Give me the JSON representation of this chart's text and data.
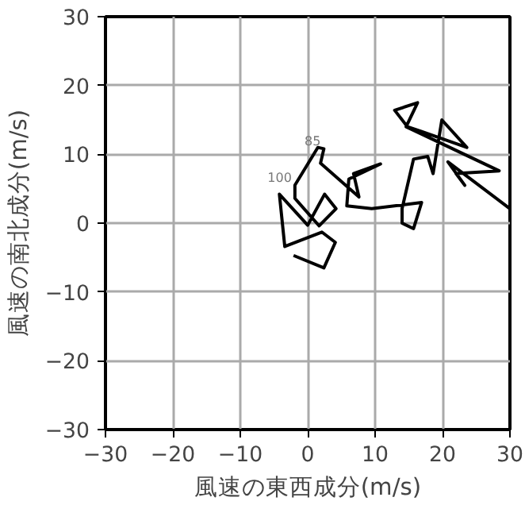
{
  "chart_data": {
    "type": "line",
    "xlabel": "風速の東西成分(m/s)",
    "ylabel": "風速の南北成分(m/s)",
    "x": [
      -2.1,
      2.4,
      4.1,
      2.1,
      -3.4,
      -4.2,
      0,
      2.5,
      4.2,
      1.7,
      -1.9,
      -1.9,
      1.5,
      2.4,
      1.9,
      7.6,
      6.8,
      10.8,
      6.1,
      5.8,
      9.5,
      16.9,
      15.7,
      14.0,
      14.0,
      15.7,
      17.8,
      18.6,
      19.9,
      23.6,
      16.9,
      14.8,
      12.9,
      16.3,
      14.6,
      28.4,
      22.0,
      23.3,
      20.8,
      30.0
    ],
    "values": [
      -4.7,
      -6.5,
      -2.8,
      -1.3,
      -3.4,
      4.2,
      -0.3,
      4.2,
      2.1,
      -0.4,
      3.6,
      5.5,
      11.0,
      10.8,
      8.7,
      3.8,
      7.2,
      8.6,
      6.4,
      2.5,
      2.1,
      3.0,
      -0.8,
      0,
      2.1,
      9.3,
      9.7,
      7.2,
      15.0,
      11.0,
      13.3,
      14.0,
      16.4,
      17.5,
      14.0,
      7.6,
      7.2,
      5.5,
      8.9,
      2.1
    ],
    "color": "#000000",
    "xlim": [
      -30,
      30
    ],
    "ylim": [
      -30,
      30
    ],
    "xticks": [
      -30,
      -20,
      -10,
      0,
      10,
      20,
      30
    ],
    "yticks": [
      -30,
      -20,
      -10,
      0,
      10,
      20,
      30
    ],
    "grid": true,
    "marker": "none",
    "line_style": "solid",
    "annotations": [
      {
        "text": "100",
        "x": -1.9,
        "y": 5.5
      },
      {
        "text": "85",
        "x": 2.4,
        "y": 10.8
      }
    ]
  }
}
